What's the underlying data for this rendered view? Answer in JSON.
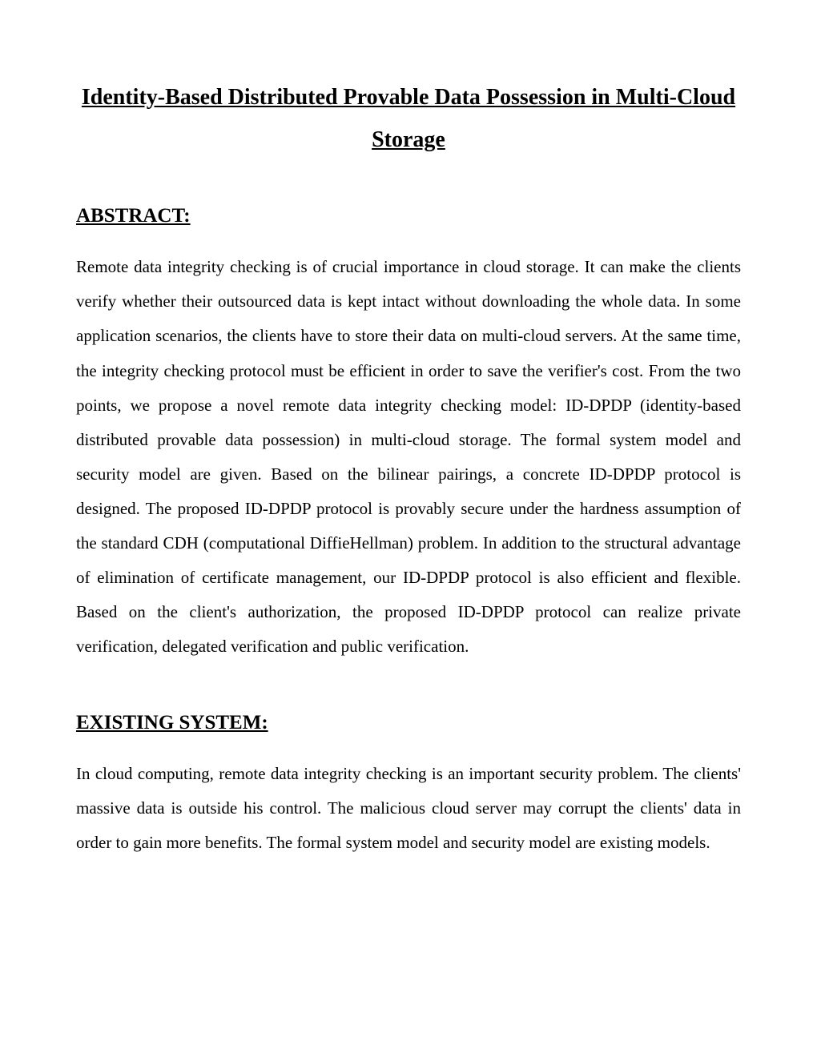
{
  "document": {
    "title": "Identity-Based Distributed Provable Data Possession in Multi-Cloud Storage",
    "text_color": "#000000",
    "background_color": "#ffffff",
    "font_family": "Times New Roman",
    "title_fontsize": 28,
    "heading_fontsize": 25,
    "body_fontsize": 21,
    "line_height": 2.05,
    "sections": [
      {
        "heading": "ABSTRACT:",
        "body": "Remote data integrity checking is of crucial importance in cloud storage. It can make the clients verify whether their outsourced data is kept intact without downloading the whole data. In some application scenarios, the clients have to store their data on multi-cloud servers. At the same time, the integrity checking protocol must be efficient in order to save the verifier's cost. From the two points, we propose a novel remote data integrity checking model: ID-DPDP (identity-based distributed provable data possession) in multi-cloud storage. The formal system model and security model are given. Based on the bilinear pairings, a concrete ID-DPDP protocol is designed. The proposed ID-DPDP protocol is provably secure under the hardness assumption of the standard CDH (computational DiffieHellman) problem. In addition to the structural advantage of elimination of certificate management, our ID-DPDP protocol is also efficient and flexible. Based on the client's authorization, the proposed ID-DPDP protocol can realize private verification, delegated verification and public verification."
      },
      {
        "heading": "EXISTING SYSTEM:",
        "body": "In cloud computing, remote data integrity checking is an important security problem. The clients' massive data is outside his control. The malicious cloud server may corrupt the clients' data in order to gain more benefits. The formal system model and security model are existing models."
      }
    ]
  }
}
